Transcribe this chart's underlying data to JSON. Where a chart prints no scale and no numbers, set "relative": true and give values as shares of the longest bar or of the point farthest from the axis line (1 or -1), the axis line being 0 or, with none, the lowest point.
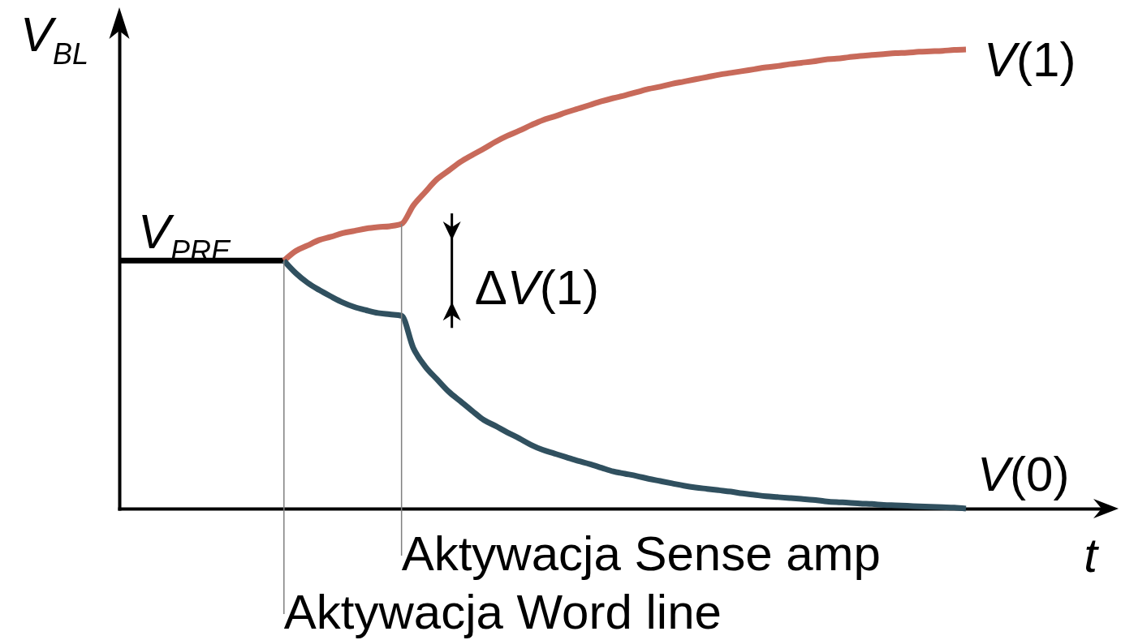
{
  "chart_data": {
    "type": "line",
    "xlabel": "t",
    "ylabel": "V$_{BL}$",
    "relative": true,
    "categories": [
      null,
      null,
      null,
      null,
      null,
      null,
      null,
      null,
      null,
      null,
      null,
      null,
      null,
      null,
      null,
      null,
      null,
      null,
      null,
      null,
      null,
      null,
      null,
      null,
      null,
      null,
      null,
      null,
      null,
      null,
      null,
      null,
      null,
      null,
      null,
      null,
      null,
      null,
      null,
      null,
      null,
      null,
      null,
      null,
      null,
      null,
      null,
      null,
      null,
      null,
      null,
      null,
      null,
      null,
      null,
      null,
      null,
      null,
      null,
      null,
      null,
      null,
      null,
      null,
      null,
      null,
      null,
      null,
      null,
      null,
      null,
      null,
      null
    ],
    "series": [
      {
        "name": "V$_{PRE}$",
        "color": "#000000",
        "values": [
          0.54,
          0.54,
          0.54,
          0.54,
          0.54,
          0.54,
          0.54,
          0.54,
          0.54,
          0.54,
          0.54,
          0.54,
          0.54,
          0.54,
          0.54,
          null,
          null,
          null,
          null,
          null,
          null,
          null,
          null,
          null,
          null,
          null,
          null,
          null,
          null,
          null,
          null,
          null,
          null,
          null,
          null,
          null,
          null,
          null,
          null,
          null,
          null,
          null,
          null,
          null,
          null,
          null,
          null,
          null,
          null,
          null,
          null,
          null,
          null,
          null,
          null,
          null,
          null,
          null,
          null,
          null,
          null,
          null,
          null,
          null,
          null,
          null,
          null,
          null,
          null,
          null,
          null,
          null,
          null
        ]
      },
      {
        "name": "V(1)",
        "color": "#c86a5a",
        "values": [
          null,
          null,
          null,
          null,
          null,
          null,
          null,
          null,
          null,
          null,
          null,
          null,
          null,
          null,
          0.54,
          0.561,
          0.573,
          0.585,
          0.592,
          0.6,
          0.605,
          0.61,
          0.613,
          0.615,
          0.62,
          0.66,
          0.689,
          0.717,
          0.736,
          0.755,
          0.77,
          0.784,
          0.799,
          0.812,
          0.823,
          0.835,
          0.846,
          0.854,
          0.863,
          0.871,
          0.879,
          0.887,
          0.894,
          0.9,
          0.907,
          0.914,
          0.919,
          0.925,
          0.93,
          0.935,
          0.94,
          0.945,
          0.949,
          0.953,
          0.957,
          0.961,
          0.964,
          0.968,
          0.971,
          0.974,
          0.978,
          0.98,
          0.983,
          0.986,
          0.988,
          0.99,
          0.992,
          0.993,
          0.995,
          0.996,
          0.997,
          0.999,
          1
        ]
      },
      {
        "name": "V(0)",
        "color": "#30505f",
        "values": [
          null,
          null,
          null,
          null,
          null,
          null,
          null,
          null,
          null,
          null,
          null,
          null,
          null,
          null,
          0.54,
          0.513,
          0.492,
          0.476,
          0.462,
          0.449,
          0.439,
          0.432,
          0.426,
          0.423,
          0.42,
          0.35,
          0.31,
          0.282,
          0.255,
          0.234,
          0.213,
          0.193,
          0.18,
          0.166,
          0.153,
          0.139,
          0.128,
          0.12,
          0.112,
          0.104,
          0.097,
          0.089,
          0.081,
          0.076,
          0.071,
          0.065,
          0.06,
          0.055,
          0.05,
          0.046,
          0.043,
          0.04,
          0.037,
          0.033,
          0.03,
          0.027,
          0.025,
          0.023,
          0.021,
          0.019,
          0.016,
          0.014,
          0.013,
          0.011,
          0.01,
          0.008,
          0.007,
          0.006,
          0.005,
          0.004,
          0.003,
          0.002,
          0
        ]
      }
    ],
    "annotations": [
      "Aktywacja Word line",
      "Aktywacja Sense amp",
      "ΔV(1)"
    ]
  }
}
